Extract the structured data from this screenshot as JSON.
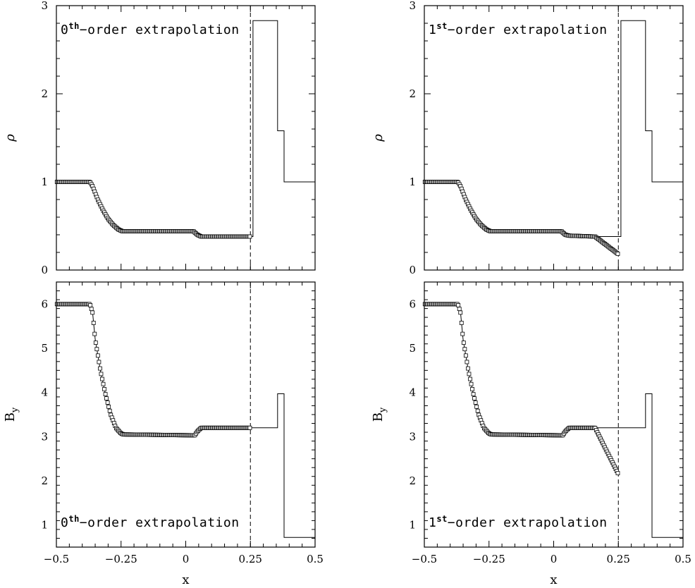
{
  "chart_data": [
    {
      "type": "line",
      "panel": "top-left",
      "annotation": {
        "base": "0",
        "sup": "th",
        "rest": "−order extrapolation"
      },
      "ylabel": "ρ",
      "xlim": [
        -0.5,
        0.5
      ],
      "ylim": [
        0,
        3
      ],
      "yticks": [
        "0",
        "1",
        "2",
        "3"
      ],
      "ytick_values": [
        0,
        1,
        2,
        3
      ],
      "xticks": [],
      "boundary_x": 0.25,
      "exact": {
        "x": [
          -0.5,
          -0.37,
          -0.36,
          -0.34,
          -0.32,
          -0.3,
          -0.28,
          -0.26,
          -0.245,
          0.03,
          0.045,
          0.06,
          0.26,
          0.26,
          0.355,
          0.355,
          0.38,
          0.38,
          0.5
        ],
        "y": [
          1.0,
          1.0,
          0.95,
          0.8,
          0.68,
          0.58,
          0.51,
          0.46,
          0.44,
          0.44,
          0.4,
          0.38,
          0.38,
          2.83,
          2.83,
          1.58,
          1.58,
          1.0,
          1.0
        ]
      },
      "markers": {
        "x_range": [
          -0.5,
          0.25
        ],
        "n": 180,
        "x": [
          -0.5,
          -0.37,
          -0.36,
          -0.34,
          -0.32,
          -0.3,
          -0.28,
          -0.26,
          -0.245,
          0.03,
          0.045,
          0.06,
          0.25
        ],
        "y": [
          1.0,
          1.0,
          0.95,
          0.8,
          0.68,
          0.58,
          0.51,
          0.46,
          0.44,
          0.44,
          0.4,
          0.38,
          0.38
        ]
      }
    },
    {
      "type": "line",
      "panel": "top-right",
      "annotation": {
        "base": "1",
        "sup": "st",
        "rest": "−order extrapolation"
      },
      "ylabel": "ρ",
      "xlim": [
        -0.5,
        0.5
      ],
      "ylim": [
        0,
        3
      ],
      "yticks": [
        "0",
        "1",
        "2",
        "3"
      ],
      "ytick_values": [
        0,
        1,
        2,
        3
      ],
      "xticks": [],
      "boundary_x": 0.25,
      "exact": {
        "x": [
          -0.5,
          -0.37,
          -0.36,
          -0.34,
          -0.32,
          -0.3,
          -0.28,
          -0.26,
          -0.245,
          0.03,
          0.045,
          0.06,
          0.26,
          0.26,
          0.355,
          0.355,
          0.38,
          0.38,
          0.5
        ],
        "y": [
          1.0,
          1.0,
          0.95,
          0.8,
          0.68,
          0.58,
          0.51,
          0.46,
          0.44,
          0.44,
          0.4,
          0.38,
          0.38,
          2.83,
          2.83,
          1.58,
          1.58,
          1.0,
          1.0
        ]
      },
      "markers": {
        "x_range": [
          -0.5,
          0.25
        ],
        "n": 180,
        "x": [
          -0.5,
          -0.37,
          -0.36,
          -0.34,
          -0.32,
          -0.3,
          -0.28,
          -0.26,
          -0.245,
          0.03,
          0.045,
          0.06,
          0.16,
          0.25
        ],
        "y": [
          1.0,
          1.0,
          0.95,
          0.8,
          0.68,
          0.58,
          0.51,
          0.46,
          0.44,
          0.44,
          0.4,
          0.39,
          0.38,
          0.18
        ]
      }
    },
    {
      "type": "line",
      "panel": "bottom-left",
      "annotation": {
        "base": "0",
        "sup": "th",
        "rest": "−order extrapolation"
      },
      "ylabel": "B",
      "ylabel_sub": "y",
      "xlabel": "x",
      "xlim": [
        -0.5,
        0.5
      ],
      "ylim": [
        0.5,
        6.5
      ],
      "yticks": [
        "1",
        "2",
        "3",
        "4",
        "5",
        "6"
      ],
      "ytick_values": [
        1,
        2,
        3,
        4,
        5,
        6
      ],
      "xticks": [
        "−0.5",
        "−0.25",
        "0",
        "0.25",
        "0.5"
      ],
      "xtick_values": [
        -0.5,
        -0.25,
        0,
        0.25,
        0.5
      ],
      "boundary_x": 0.25,
      "exact": {
        "x": [
          -0.5,
          -0.37,
          -0.36,
          -0.35,
          -0.33,
          -0.31,
          -0.29,
          -0.27,
          -0.25,
          -0.24,
          0.035,
          0.045,
          0.06,
          0.255,
          0.355,
          0.355,
          0.38,
          0.38,
          0.5
        ],
        "y": [
          6.0,
          6.0,
          5.8,
          5.2,
          4.5,
          3.95,
          3.5,
          3.2,
          3.07,
          3.05,
          3.05,
          3.12,
          3.2,
          3.2,
          3.2,
          3.97,
          3.97,
          0.72,
          0.72
        ]
      },
      "markers": {
        "x_range": [
          -0.5,
          0.25
        ],
        "n": 180,
        "x": [
          -0.5,
          -0.37,
          -0.36,
          -0.35,
          -0.33,
          -0.31,
          -0.29,
          -0.27,
          -0.25,
          -0.24,
          0.035,
          0.045,
          0.06,
          0.25
        ],
        "y": [
          6.0,
          6.0,
          5.8,
          5.2,
          4.5,
          3.95,
          3.5,
          3.2,
          3.07,
          3.05,
          3.03,
          3.12,
          3.2,
          3.2
        ]
      }
    },
    {
      "type": "line",
      "panel": "bottom-right",
      "annotation": {
        "base": "1",
        "sup": "st",
        "rest": "−order extrapolation"
      },
      "ylabel": "B",
      "ylabel_sub": "y",
      "xlabel": "x",
      "xlim": [
        -0.5,
        0.5
      ],
      "ylim": [
        0.5,
        6.5
      ],
      "yticks": [
        "1",
        "2",
        "3",
        "4",
        "5",
        "6"
      ],
      "ytick_values": [
        1,
        2,
        3,
        4,
        5,
        6
      ],
      "xticks": [
        "−0.5",
        "−0.25",
        "0",
        "0.25",
        "0.5"
      ],
      "xtick_values": [
        -0.5,
        -0.25,
        0,
        0.25,
        0.5
      ],
      "boundary_x": 0.25,
      "exact": {
        "x": [
          -0.5,
          -0.37,
          -0.36,
          -0.35,
          -0.33,
          -0.31,
          -0.29,
          -0.27,
          -0.25,
          -0.24,
          0.035,
          0.045,
          0.06,
          0.255,
          0.355,
          0.355,
          0.38,
          0.38,
          0.5
        ],
        "y": [
          6.0,
          6.0,
          5.8,
          5.2,
          4.5,
          3.95,
          3.5,
          3.2,
          3.07,
          3.05,
          3.05,
          3.12,
          3.2,
          3.2,
          3.2,
          3.97,
          3.97,
          0.72,
          0.72
        ]
      },
      "markers": {
        "x_range": [
          -0.5,
          0.25
        ],
        "n": 180,
        "x": [
          -0.5,
          -0.37,
          -0.36,
          -0.35,
          -0.33,
          -0.31,
          -0.29,
          -0.27,
          -0.25,
          -0.24,
          0.035,
          0.045,
          0.06,
          0.16,
          0.25
        ],
        "y": [
          6.0,
          6.0,
          5.8,
          5.2,
          4.5,
          3.95,
          3.5,
          3.2,
          3.07,
          3.05,
          3.03,
          3.12,
          3.2,
          3.2,
          2.15
        ]
      }
    }
  ]
}
